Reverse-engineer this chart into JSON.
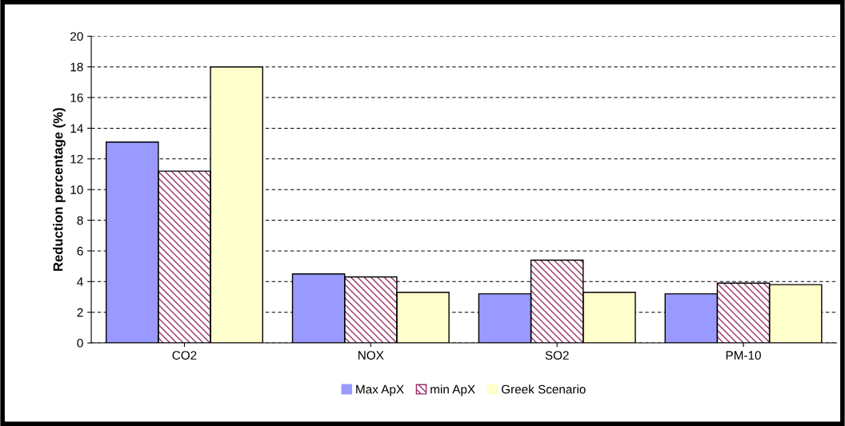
{
  "chart_data": {
    "type": "bar",
    "ylabel": "Reduction percentage (%)",
    "categories": [
      "CO2",
      "NOX",
      "SO2",
      "PM-10"
    ],
    "series": [
      {
        "name": "Max ApX",
        "color": "#9999ff",
        "values": [
          13.1,
          4.5,
          3.2,
          3.2
        ]
      },
      {
        "name": "min ApX",
        "color": "#993366",
        "values": [
          11.2,
          4.3,
          5.4,
          3.9
        ]
      },
      {
        "name": "Greek Scenario",
        "color": "#ffffcc",
        "values": [
          18,
          3.3,
          3.3,
          3.8
        ]
      }
    ],
    "ylim": [
      0,
      20
    ],
    "yticks": [
      0,
      2,
      4,
      6,
      8,
      10,
      12,
      14,
      16,
      18,
      20
    ],
    "grid": "y",
    "legend": "bottom"
  }
}
